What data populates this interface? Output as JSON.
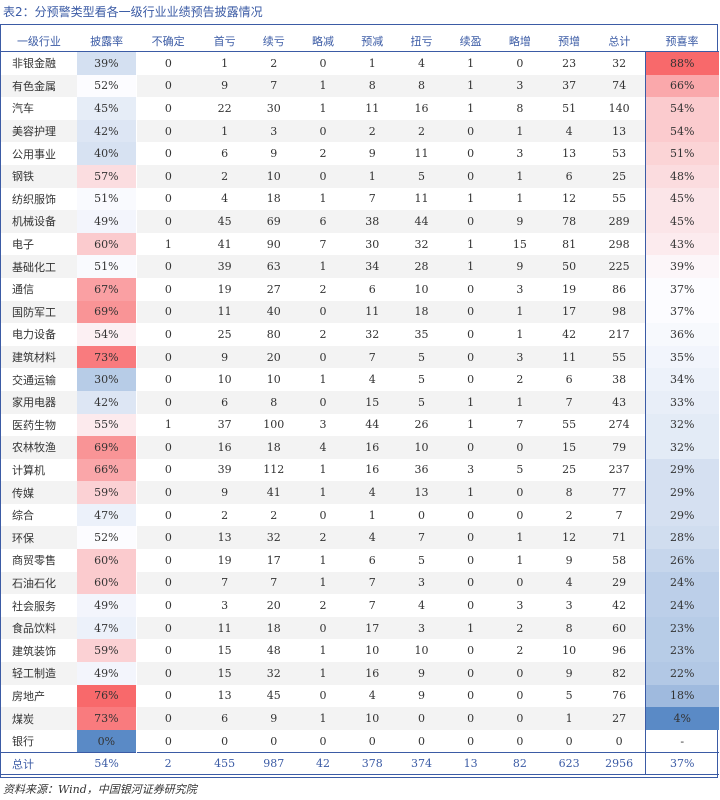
{
  "title": "表2：分预警类型看各一级行业业绩预告披露情况",
  "source": "资料来源：Wind，中国银河证券研究院",
  "columns": [
    "一级行业",
    "披露率",
    "不确定",
    "首亏",
    "续亏",
    "略减",
    "预减",
    "扭亏",
    "续盈",
    "略增",
    "预增",
    "总计",
    "预喜率"
  ],
  "rows": [
    {
      "industry": "非银金融",
      "disclosure_rate": "39%",
      "values": [
        "0",
        "1",
        "2",
        "0",
        "1",
        "4",
        "1",
        "0",
        "23",
        "32"
      ],
      "positive_rate": "88%"
    },
    {
      "industry": "有色金属",
      "disclosure_rate": "52%",
      "values": [
        "0",
        "9",
        "7",
        "1",
        "8",
        "8",
        "1",
        "3",
        "37",
        "74"
      ],
      "positive_rate": "66%"
    },
    {
      "industry": "汽车",
      "disclosure_rate": "45%",
      "values": [
        "0",
        "22",
        "30",
        "1",
        "11",
        "16",
        "1",
        "8",
        "51",
        "140"
      ],
      "positive_rate": "54%"
    },
    {
      "industry": "美容护理",
      "disclosure_rate": "42%",
      "values": [
        "0",
        "1",
        "3",
        "0",
        "2",
        "2",
        "0",
        "1",
        "4",
        "13"
      ],
      "positive_rate": "54%"
    },
    {
      "industry": "公用事业",
      "disclosure_rate": "40%",
      "values": [
        "0",
        "6",
        "9",
        "2",
        "9",
        "11",
        "0",
        "3",
        "13",
        "53"
      ],
      "positive_rate": "51%"
    },
    {
      "industry": "钢铁",
      "disclosure_rate": "57%",
      "values": [
        "0",
        "2",
        "10",
        "0",
        "1",
        "5",
        "0",
        "1",
        "6",
        "25"
      ],
      "positive_rate": "48%"
    },
    {
      "industry": "纺织服饰",
      "disclosure_rate": "51%",
      "values": [
        "0",
        "4",
        "18",
        "1",
        "7",
        "11",
        "1",
        "1",
        "12",
        "55"
      ],
      "positive_rate": "45%"
    },
    {
      "industry": "机械设备",
      "disclosure_rate": "49%",
      "values": [
        "0",
        "45",
        "69",
        "6",
        "38",
        "44",
        "0",
        "9",
        "78",
        "289"
      ],
      "positive_rate": "45%"
    },
    {
      "industry": "电子",
      "disclosure_rate": "60%",
      "values": [
        "1",
        "41",
        "90",
        "7",
        "30",
        "32",
        "1",
        "15",
        "81",
        "298"
      ],
      "positive_rate": "43%"
    },
    {
      "industry": "基础化工",
      "disclosure_rate": "51%",
      "values": [
        "0",
        "39",
        "63",
        "1",
        "34",
        "28",
        "1",
        "9",
        "50",
        "225"
      ],
      "positive_rate": "39%"
    },
    {
      "industry": "通信",
      "disclosure_rate": "67%",
      "values": [
        "0",
        "19",
        "27",
        "2",
        "6",
        "10",
        "0",
        "3",
        "19",
        "86"
      ],
      "positive_rate": "37%"
    },
    {
      "industry": "国防军工",
      "disclosure_rate": "69%",
      "values": [
        "0",
        "11",
        "40",
        "0",
        "11",
        "18",
        "0",
        "1",
        "17",
        "98"
      ],
      "positive_rate": "37%"
    },
    {
      "industry": "电力设备",
      "disclosure_rate": "54%",
      "values": [
        "0",
        "25",
        "80",
        "2",
        "32",
        "35",
        "0",
        "1",
        "42",
        "217"
      ],
      "positive_rate": "36%"
    },
    {
      "industry": "建筑材料",
      "disclosure_rate": "73%",
      "values": [
        "0",
        "9",
        "20",
        "0",
        "7",
        "5",
        "0",
        "3",
        "11",
        "55"
      ],
      "positive_rate": "35%"
    },
    {
      "industry": "交通运输",
      "disclosure_rate": "30%",
      "values": [
        "0",
        "10",
        "10",
        "1",
        "4",
        "5",
        "0",
        "2",
        "6",
        "38"
      ],
      "positive_rate": "34%"
    },
    {
      "industry": "家用电器",
      "disclosure_rate": "42%",
      "values": [
        "0",
        "6",
        "8",
        "0",
        "15",
        "5",
        "1",
        "1",
        "7",
        "43"
      ],
      "positive_rate": "33%"
    },
    {
      "industry": "医药生物",
      "disclosure_rate": "55%",
      "values": [
        "1",
        "37",
        "100",
        "3",
        "44",
        "26",
        "1",
        "7",
        "55",
        "274"
      ],
      "positive_rate": "32%"
    },
    {
      "industry": "农林牧渔",
      "disclosure_rate": "69%",
      "values": [
        "0",
        "16",
        "18",
        "4",
        "16",
        "10",
        "0",
        "0",
        "15",
        "79"
      ],
      "positive_rate": "32%"
    },
    {
      "industry": "计算机",
      "disclosure_rate": "66%",
      "values": [
        "0",
        "39",
        "112",
        "1",
        "16",
        "36",
        "3",
        "5",
        "25",
        "237"
      ],
      "positive_rate": "29%"
    },
    {
      "industry": "传媒",
      "disclosure_rate": "59%",
      "values": [
        "0",
        "9",
        "41",
        "1",
        "4",
        "13",
        "1",
        "0",
        "8",
        "77"
      ],
      "positive_rate": "29%"
    },
    {
      "industry": "综合",
      "disclosure_rate": "47%",
      "values": [
        "0",
        "2",
        "2",
        "0",
        "1",
        "0",
        "0",
        "0",
        "2",
        "7"
      ],
      "positive_rate": "29%"
    },
    {
      "industry": "环保",
      "disclosure_rate": "52%",
      "values": [
        "0",
        "13",
        "32",
        "2",
        "4",
        "7",
        "0",
        "1",
        "12",
        "71"
      ],
      "positive_rate": "28%"
    },
    {
      "industry": "商贸零售",
      "disclosure_rate": "60%",
      "values": [
        "0",
        "19",
        "17",
        "1",
        "6",
        "5",
        "0",
        "1",
        "9",
        "58"
      ],
      "positive_rate": "26%"
    },
    {
      "industry": "石油石化",
      "disclosure_rate": "60%",
      "values": [
        "0",
        "7",
        "7",
        "1",
        "7",
        "3",
        "0",
        "0",
        "4",
        "29"
      ],
      "positive_rate": "24%"
    },
    {
      "industry": "社会服务",
      "disclosure_rate": "49%",
      "values": [
        "0",
        "3",
        "20",
        "2",
        "7",
        "4",
        "0",
        "3",
        "3",
        "42"
      ],
      "positive_rate": "24%"
    },
    {
      "industry": "食品饮料",
      "disclosure_rate": "47%",
      "values": [
        "0",
        "11",
        "18",
        "0",
        "17",
        "3",
        "1",
        "2",
        "8",
        "60"
      ],
      "positive_rate": "23%"
    },
    {
      "industry": "建筑装饰",
      "disclosure_rate": "59%",
      "values": [
        "0",
        "15",
        "48",
        "1",
        "10",
        "10",
        "0",
        "2",
        "10",
        "96"
      ],
      "positive_rate": "23%"
    },
    {
      "industry": "轻工制造",
      "disclosure_rate": "49%",
      "values": [
        "0",
        "15",
        "32",
        "1",
        "16",
        "9",
        "0",
        "0",
        "9",
        "82"
      ],
      "positive_rate": "22%"
    },
    {
      "industry": "房地产",
      "disclosure_rate": "76%",
      "values": [
        "0",
        "13",
        "45",
        "0",
        "4",
        "9",
        "0",
        "0",
        "5",
        "76"
      ],
      "positive_rate": "18%"
    },
    {
      "industry": "煤炭",
      "disclosure_rate": "73%",
      "values": [
        "0",
        "6",
        "9",
        "1",
        "10",
        "0",
        "0",
        "0",
        "1",
        "27"
      ],
      "positive_rate": "4%"
    },
    {
      "industry": "银行",
      "disclosure_rate": "0%",
      "values": [
        "0",
        "0",
        "0",
        "0",
        "0",
        "0",
        "0",
        "0",
        "0",
        "0"
      ],
      "positive_rate": "-"
    }
  ],
  "total": {
    "industry": "总计",
    "disclosure_rate": "54%",
    "values": [
      "2",
      "455",
      "987",
      "42",
      "378",
      "374",
      "13",
      "82",
      "623",
      "2956"
    ],
    "positive_rate": "37%"
  },
  "colors": {
    "accent": "#3b5ba5",
    "red_max": "#f8696b",
    "blue_max": "#5a8ac6",
    "neutral": "#fcfcff"
  }
}
